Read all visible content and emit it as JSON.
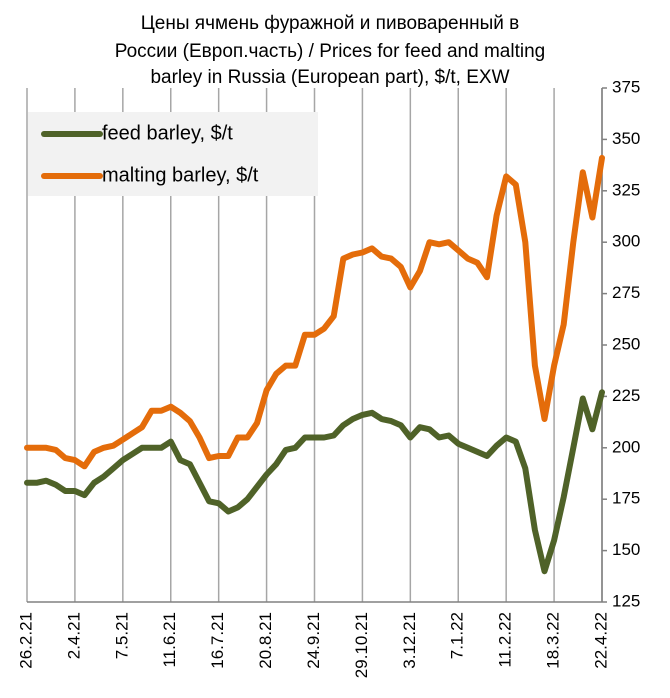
{
  "chart_data": {
    "type": "line",
    "title": [
      "Цены ячмень фуражной и пивоваренный в",
      "России (Европ.часть) / Prices for feed and malting",
      "barley in Russia (European part), $/t, EXW"
    ],
    "categories": [
      "26.2.21",
      null,
      null,
      null,
      null,
      "2.4.21",
      null,
      null,
      null,
      null,
      "7.5.21",
      null,
      null,
      null,
      null,
      "11.6.21",
      null,
      null,
      null,
      null,
      "16.7.21",
      null,
      null,
      null,
      null,
      "20.8.21",
      null,
      null,
      null,
      null,
      "24.9.21",
      null,
      null,
      null,
      null,
      "29.10.21",
      null,
      null,
      null,
      null,
      "3.12.21",
      null,
      null,
      null,
      null,
      "7.1.22",
      null,
      null,
      null,
      null,
      "11.2.22",
      null,
      null,
      null,
      null,
      "18.3.22",
      null,
      null,
      null,
      null,
      "22.4.22"
    ],
    "series": [
      {
        "name": "feed barley, $/t",
        "color": "#4f6228",
        "values": [
          183,
          183,
          184,
          182,
          179,
          179,
          177,
          183,
          186,
          190,
          194,
          197,
          200,
          200,
          200,
          203,
          194,
          192,
          183,
          174,
          173,
          169,
          171,
          175,
          181,
          187,
          192,
          199,
          200,
          205,
          205,
          205,
          206,
          211,
          214,
          216,
          217,
          214,
          213,
          211,
          205,
          210,
          209,
          205,
          206,
          202,
          200,
          198,
          196,
          201,
          205,
          203,
          190,
          160,
          140,
          155,
          176,
          200,
          224,
          209,
          227
        ]
      },
      {
        "name": "malting barley, $/t",
        "color": "#e46c0a",
        "values": [
          200,
          200,
          200,
          199,
          195,
          194,
          191,
          198,
          200,
          201,
          204,
          207,
          210,
          218,
          218,
          220,
          217,
          213,
          205,
          195,
          196,
          196,
          205,
          205,
          212,
          228,
          236,
          240,
          240,
          255,
          255,
          258,
          264,
          292,
          294,
          295,
          297,
          293,
          292,
          288,
          278,
          286,
          300,
          299,
          300,
          296,
          292,
          290,
          283,
          313,
          332,
          328,
          300,
          240,
          214,
          240,
          260,
          300,
          334,
          312,
          341
        ]
      }
    ],
    "ylim": [
      125,
      375
    ],
    "yticks": [
      125,
      150,
      175,
      200,
      225,
      250,
      275,
      300,
      325,
      350,
      375
    ],
    "grid": true,
    "legend": "top-left"
  }
}
